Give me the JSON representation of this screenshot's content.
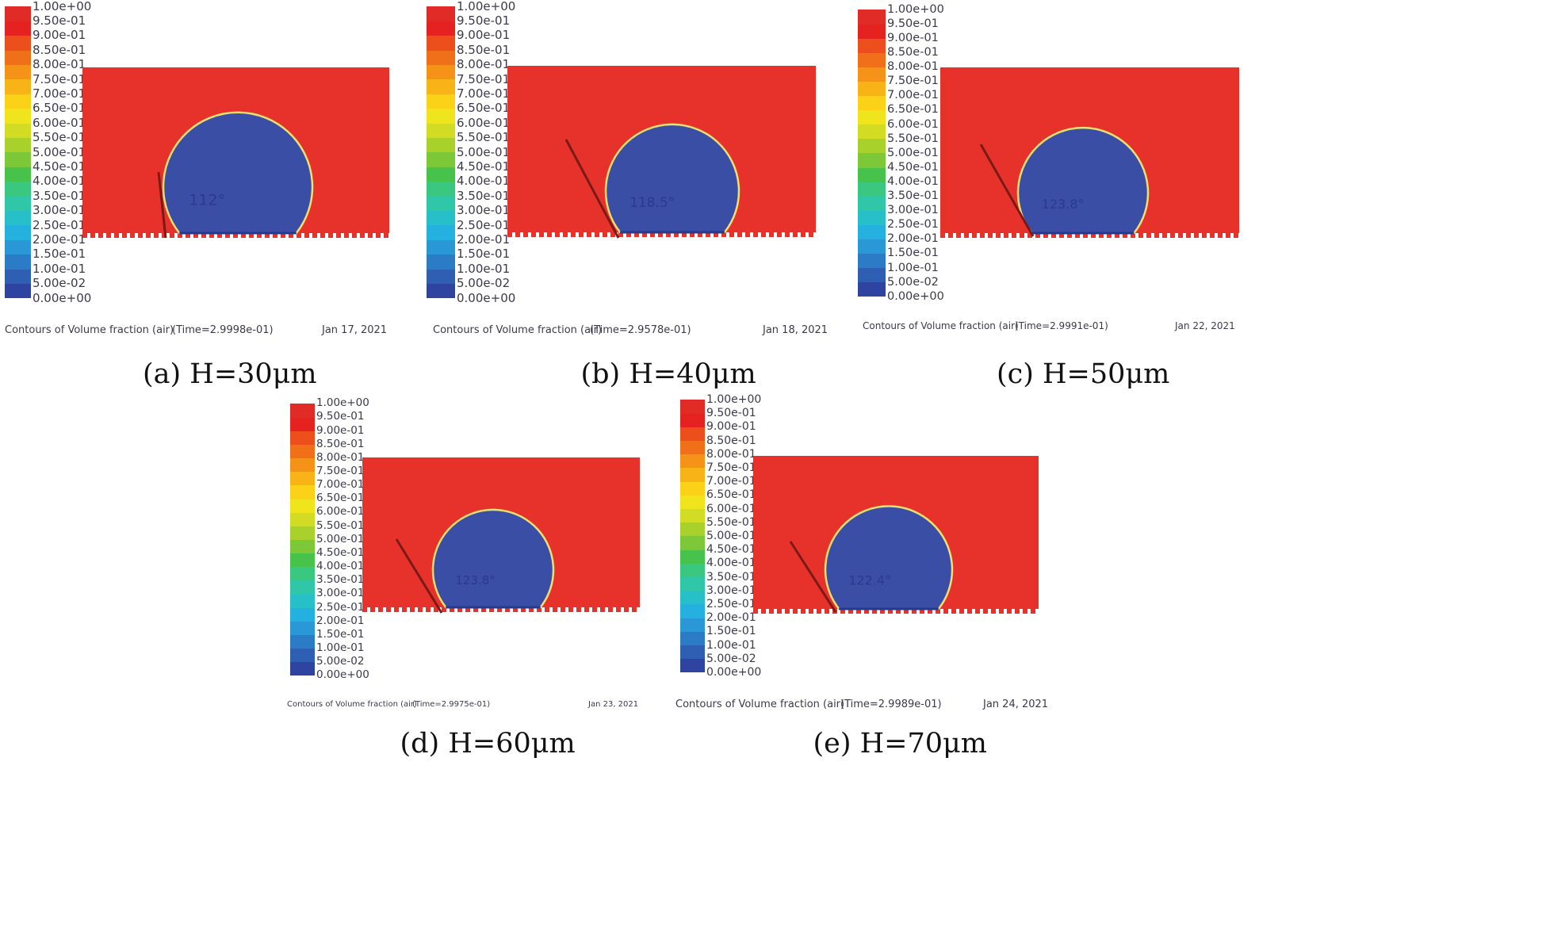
{
  "colors": {
    "scale": [
      "#2f44a1",
      "#2e5fb3",
      "#2c7bc6",
      "#2a98d6",
      "#24b1e0",
      "#27bfc8",
      "#2fc7a8",
      "#3ac77f",
      "#47c24b",
      "#7cc838",
      "#a8d12c",
      "#d2dc22",
      "#f0e51c",
      "#fbd218",
      "#f8b417",
      "#f49318",
      "#f07019",
      "#ec4f1c",
      "#e5221f",
      "#e02b26"
    ],
    "fluid": "#e7322b",
    "drop": "#3a4ea6",
    "rim": "#f0e070",
    "angle_line": "#7a1a16",
    "angle_text": "#2a3a8c"
  },
  "legend_ticks": [
    "1.00e+00",
    "9.50e-01",
    "9.00e-01",
    "8.50e-01",
    "8.00e-01",
    "7.50e-01",
    "7.00e-01",
    "6.50e-01",
    "6.00e-01",
    "5.50e-01",
    "5.00e-01",
    "4.50e-01",
    "4.00e-01",
    "3.50e-01",
    "3.00e-01",
    "2.50e-01",
    "2.00e-01",
    "1.50e-01",
    "1.00e-01",
    "5.00e-02",
    "0.00e+00"
  ],
  "panels": [
    {
      "id": "a",
      "caption": "(a) H=30μm",
      "footer_title": "Contours of Volume fraction (air)",
      "footer_time": "(Time=2.9998e-01)",
      "footer_date": "Jan 17, 2021",
      "angle": "112°"
    },
    {
      "id": "b",
      "caption": "(b) H=40μm",
      "footer_title": "Contours of Volume fraction (air)",
      "footer_time": "(Time=2.9578e-01)",
      "footer_date": "Jan 18, 2021",
      "angle": "118.5°"
    },
    {
      "id": "c",
      "caption": "(c) H=50μm",
      "footer_title": "Contours of Volume fraction (air)",
      "footer_time": "(Time=2.9991e-01)",
      "footer_date": "Jan 22, 2021",
      "angle": "123.8°"
    },
    {
      "id": "d",
      "caption": "(d) H=60μm",
      "footer_title": "Contours of Volume fraction (air)",
      "footer_time": "(Time=2.9975e-01)",
      "footer_date": "Jan 23, 2021",
      "angle": "123.8°"
    },
    {
      "id": "e",
      "caption": "(e) H=70μm",
      "footer_title": "Contours of Volume fraction (air)",
      "footer_time": "(Time=2.9989e-01)",
      "footer_date": "Jan 24, 2021",
      "angle": "122.4°"
    }
  ]
}
